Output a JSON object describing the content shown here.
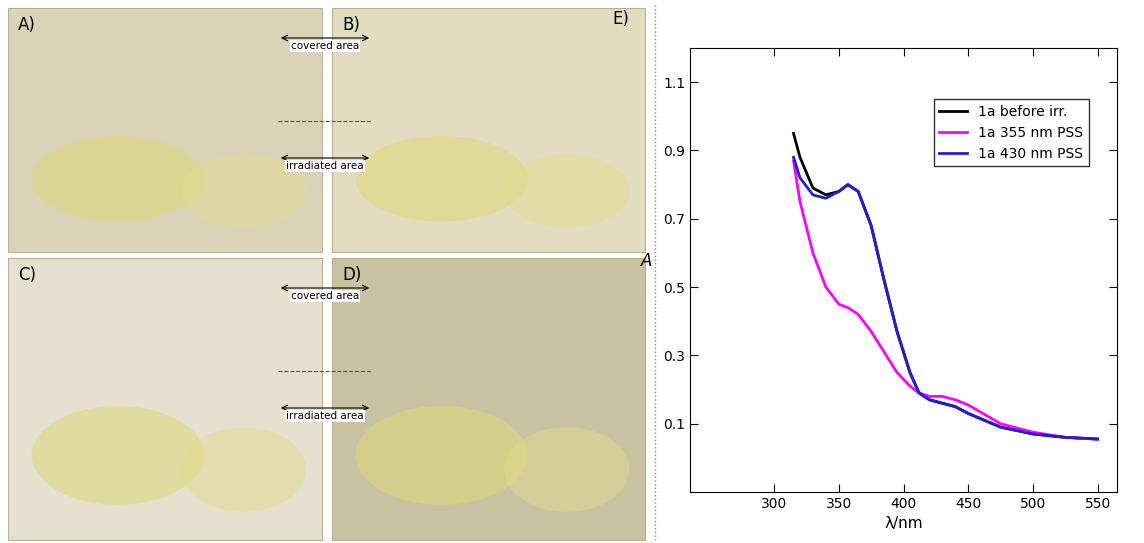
{
  "rows": [
    {
      "panels": [
        "A)",
        "B)"
      ],
      "annotations": [
        "covered area",
        "irradiated area"
      ]
    },
    {
      "panels": [
        "C)",
        "D)"
      ],
      "annotations": [
        "covered area",
        "irradiated area"
      ]
    }
  ],
  "chart_data": {
    "type": "line",
    "panel": "E)",
    "x_label": "λ/nm",
    "y_label": "A",
    "x": [
      315,
      320,
      330,
      340,
      350,
      357,
      365,
      375,
      385,
      395,
      405,
      412,
      420,
      430,
      440,
      450,
      475,
      500,
      525,
      550
    ],
    "series": [
      {
        "name": "1a before irr.",
        "color": "#000000",
        "values": [
          0.95,
          0.88,
          0.79,
          0.77,
          0.78,
          0.8,
          0.78,
          0.68,
          0.52,
          0.37,
          0.25,
          0.19,
          0.17,
          0.16,
          0.15,
          0.13,
          0.09,
          0.07,
          0.06,
          0.055
        ]
      },
      {
        "name": "1a 355 nm PSS",
        "color": "#ff00ff",
        "values": [
          0.87,
          0.75,
          0.6,
          0.5,
          0.45,
          0.44,
          0.42,
          0.37,
          0.31,
          0.25,
          0.21,
          0.19,
          0.18,
          0.18,
          0.17,
          0.155,
          0.1,
          0.075,
          0.06,
          0.055
        ]
      },
      {
        "name": "1a 430 nm PSS",
        "color": "#1f1fd6",
        "values": [
          0.88,
          0.82,
          0.77,
          0.76,
          0.78,
          0.8,
          0.78,
          0.68,
          0.52,
          0.37,
          0.25,
          0.19,
          0.17,
          0.16,
          0.15,
          0.13,
          0.09,
          0.07,
          0.06,
          0.055
        ]
      }
    ],
    "xlim": [
      235,
      565
    ],
    "xticks": [
      300,
      350,
      400,
      450,
      500,
      550
    ],
    "ylim": [
      -0.1,
      1.2
    ],
    "yticks": [
      0.1,
      0.3,
      0.5,
      0.7,
      0.9,
      1.1
    ],
    "legend": "upper right"
  }
}
